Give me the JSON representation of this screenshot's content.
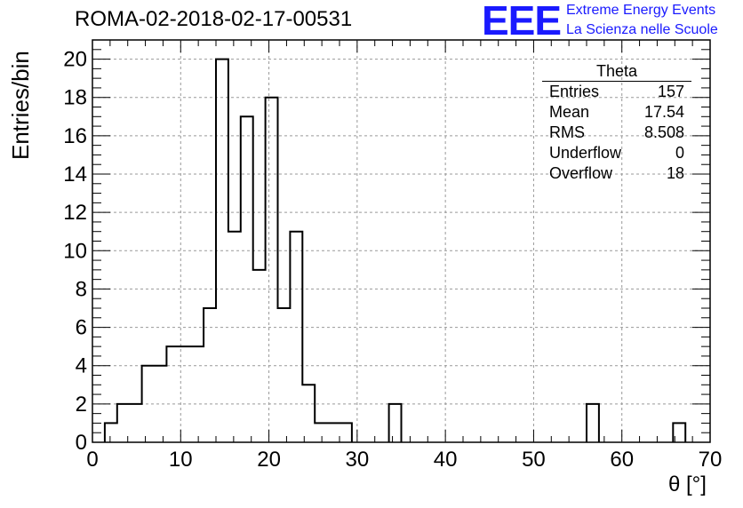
{
  "page": {
    "title": "ROMA-02-2018-02-17-00531",
    "logo": {
      "mark": "EEE",
      "line1": "Extreme Energy Events",
      "line2": "La Scienza nelle Scuole",
      "color": "#1a1aff"
    }
  },
  "stats_box": {
    "title": "Theta",
    "rows": [
      {
        "label": "Entries",
        "value": "157"
      },
      {
        "label": "Mean",
        "value": "17.54"
      },
      {
        "label": "RMS",
        "value": "8.508"
      },
      {
        "label": "Underflow",
        "value": "0"
      },
      {
        "label": "Overflow",
        "value": "18"
      }
    ]
  },
  "chart_data": {
    "type": "bar",
    "style": "step-histogram",
    "title": "ROMA-02-2018-02-17-00531",
    "xlabel": "θ [°]",
    "ylabel": "Entries/bin",
    "xlim": [
      0,
      70
    ],
    "ylim": [
      0,
      21
    ],
    "bin_width": 1.4,
    "x_ticks": [
      0,
      10,
      20,
      30,
      40,
      50,
      60,
      70
    ],
    "y_ticks": [
      0,
      2,
      4,
      6,
      8,
      10,
      12,
      14,
      16,
      18,
      20
    ],
    "grid": true,
    "line_color": "#000000",
    "bins": [
      {
        "x": 1.4,
        "y": 1
      },
      {
        "x": 2.8,
        "y": 2
      },
      {
        "x": 4.2,
        "y": 2
      },
      {
        "x": 5.6,
        "y": 4
      },
      {
        "x": 7.0,
        "y": 4
      },
      {
        "x": 8.4,
        "y": 5
      },
      {
        "x": 9.8,
        "y": 5
      },
      {
        "x": 11.2,
        "y": 5
      },
      {
        "x": 12.6,
        "y": 7
      },
      {
        "x": 14.0,
        "y": 20
      },
      {
        "x": 15.4,
        "y": 11
      },
      {
        "x": 16.8,
        "y": 17
      },
      {
        "x": 18.2,
        "y": 9
      },
      {
        "x": 19.6,
        "y": 18
      },
      {
        "x": 21.0,
        "y": 7
      },
      {
        "x": 22.4,
        "y": 11
      },
      {
        "x": 23.8,
        "y": 3
      },
      {
        "x": 25.2,
        "y": 1
      },
      {
        "x": 26.6,
        "y": 1
      },
      {
        "x": 28.0,
        "y": 1
      },
      {
        "x": 33.6,
        "y": 2
      },
      {
        "x": 56.0,
        "y": 2
      },
      {
        "x": 65.8,
        "y": 1
      }
    ]
  }
}
